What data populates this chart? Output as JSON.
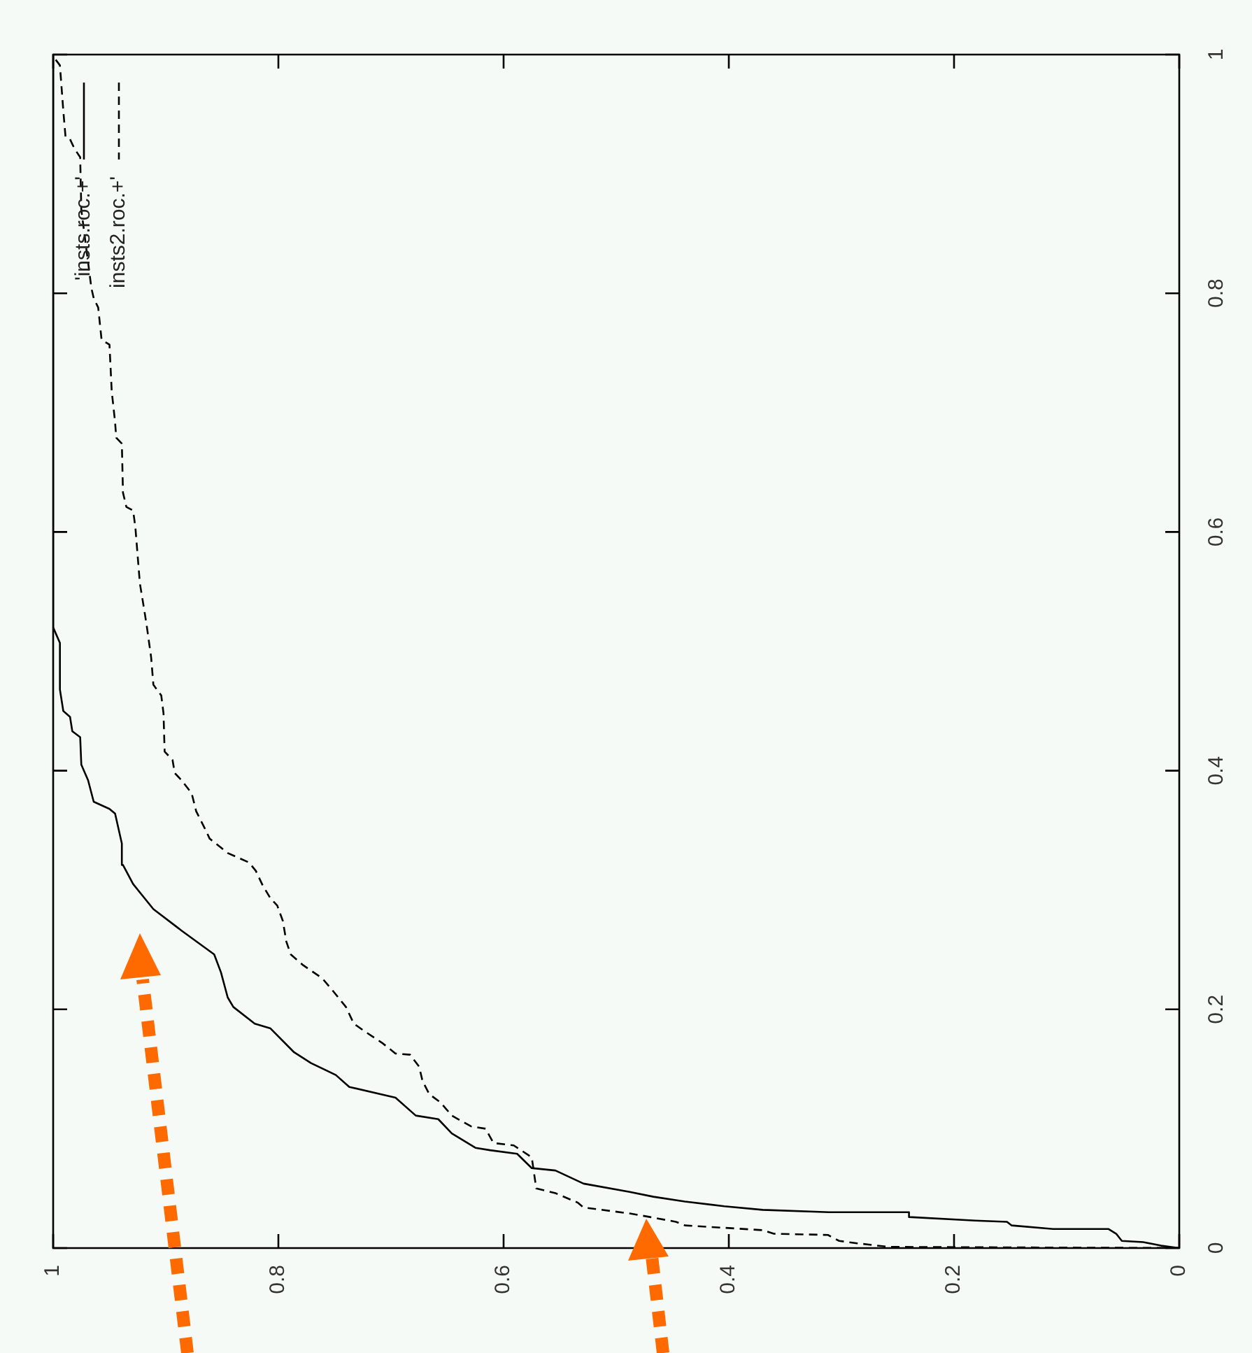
{
  "chart_data": {
    "type": "line",
    "xlim": [
      1,
      0
    ],
    "ylim": [
      0,
      1
    ],
    "xticks": [
      0,
      0.2,
      0.4,
      0.6,
      0.8,
      1
    ],
    "yticks": [
      0,
      0.2,
      0.4,
      0.6,
      0.8,
      1
    ],
    "legend": "top left",
    "series": [
      {
        "name": "'insts.roc.+'",
        "color": "#000000",
        "line_style": "solid",
        "values": [
          0,
          0.002,
          0.005,
          0.006,
          0.012,
          0.016,
          0.016,
          0.019,
          0.022,
          0.023,
          0.026,
          0.03,
          0.03,
          0.032,
          0.035,
          0.039,
          0.043,
          0.047,
          0.054,
          0.065,
          0.067,
          0.079,
          0.082,
          0.084,
          0.096,
          0.108,
          0.111,
          0.126,
          0.135,
          0.145,
          0.155,
          0.164,
          0.184,
          0.188,
          0.202,
          0.21,
          0.231,
          0.246,
          0.266,
          0.284,
          0.305,
          0.321,
          0.339,
          0.364,
          0.368,
          0.374,
          0.392,
          0.405,
          0.428,
          0.433,
          0.445,
          0.45,
          0.468,
          0.507,
          0.52,
          1
        ],
        "x": [
          0,
          0.016,
          0.032,
          0.051,
          0.056,
          0.063,
          0.112,
          0.149,
          0.153,
          0.181,
          0.24,
          0.24,
          0.311,
          0.37,
          0.404,
          0.439,
          0.467,
          0.488,
          0.529,
          0.554,
          0.575,
          0.588,
          0.612,
          0.625,
          0.646,
          0.658,
          0.678,
          0.696,
          0.737,
          0.749,
          0.771,
          0.786,
          0.807,
          0.821,
          0.84,
          0.845,
          0.851,
          0.857,
          0.886,
          0.911,
          0.929,
          0.938,
          0.939,
          0.945,
          0.95,
          0.964,
          0.969,
          0.975,
          0.976,
          0.983,
          0.985,
          0.991,
          0.994,
          0.994,
          1,
          1
        ]
      },
      {
        "name": "insts2.roc.+'",
        "color": "#000000",
        "line_style": "dashed",
        "values": [
          0,
          0.001,
          0.004,
          0.006,
          0.011,
          0.012,
          0.015,
          0.019,
          0.022,
          0.026,
          0.029,
          0.034,
          0.038,
          0.046,
          0.05,
          0.076,
          0.086,
          0.088,
          0.1,
          0.102,
          0.111,
          0.122,
          0.129,
          0.14,
          0.152,
          0.162,
          0.163,
          0.172,
          0.182,
          0.188,
          0.202,
          0.216,
          0.226,
          0.237,
          0.246,
          0.257,
          0.274,
          0.287,
          0.293,
          0.304,
          0.316,
          0.323,
          0.331,
          0.343,
          0.351,
          0.366,
          0.381,
          0.392,
          0.398,
          0.409,
          0.416,
          0.448,
          0.463,
          0.472,
          0.495,
          0.522,
          0.534,
          0.557,
          0.604,
          0.618,
          0.621,
          0.633,
          0.674,
          0.679,
          0.692,
          0.718,
          0.757,
          0.761,
          0.788,
          0.796,
          0.804,
          0.87,
          0.914,
          0.921,
          0.929,
          0.931,
          0.953,
          0.991,
          0.996,
          1
        ],
        "x": [
          0,
          0.258,
          0.286,
          0.302,
          0.312,
          0.36,
          0.37,
          0.439,
          0.447,
          0.47,
          0.488,
          0.529,
          0.534,
          0.554,
          0.571,
          0.575,
          0.591,
          0.609,
          0.616,
          0.629,
          0.646,
          0.656,
          0.666,
          0.672,
          0.675,
          0.683,
          0.696,
          0.708,
          0.724,
          0.733,
          0.74,
          0.752,
          0.761,
          0.778,
          0.789,
          0.793,
          0.796,
          0.801,
          0.807,
          0.814,
          0.82,
          0.826,
          0.845,
          0.861,
          0.865,
          0.873,
          0.877,
          0.886,
          0.892,
          0.894,
          0.901,
          0.902,
          0.904,
          0.911,
          0.913,
          0.917,
          0.919,
          0.923,
          0.927,
          0.929,
          0.935,
          0.938,
          0.939,
          0.944,
          0.945,
          0.948,
          0.95,
          0.957,
          0.96,
          0.964,
          0.966,
          0.975,
          0.976,
          0.981,
          0.985,
          0.989,
          0.991,
          0.994,
          0.998,
          1
        ]
      }
    ]
  }
}
